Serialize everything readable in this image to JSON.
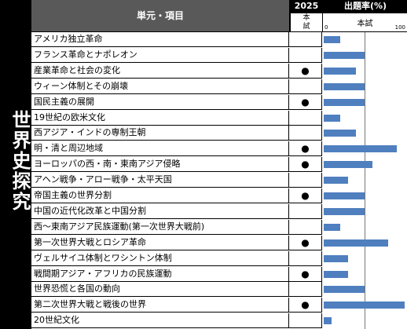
{
  "side_label": "世界史探究",
  "header": {
    "topic": "単元・項目",
    "year": "2025",
    "rate": "出題率(%)",
    "exam_sub": "本\n試",
    "rate_sub": "本試",
    "tick_min": "0",
    "tick_max": "100"
  },
  "chart_data": {
    "type": "bar",
    "orientation": "horizontal",
    "xlim": [
      0,
      100
    ],
    "categories": [
      "アメリカ独立革命",
      "フランス革命とナポレオン",
      "産業革命と社会の変化",
      "ウィーン体制とその崩壊",
      "国民主義の展開",
      "19世紀の欧米文化",
      "西アジア・インドの専制王朝",
      "明・清と周辺地域",
      "ヨーロッパの西・南・東南アジア侵略",
      "アヘン戦争・アロー戦争・太平天国",
      "帝国主義の世界分割",
      "中国の近代化改革と中国分割",
      "西～東南アジア民族運動(第一次世界大戦前)",
      "第一次世界大戦とロシア革命",
      "ヴェルサイユ体制とワシントン体制",
      "戦間期アジア・アフリカの民族運動",
      "世界恐慌と各国の動向",
      "第二次世界大戦と戦後の世界",
      "20世紀文化"
    ],
    "values": [
      20,
      50,
      40,
      50,
      50,
      20,
      40,
      90,
      60,
      30,
      50,
      50,
      20,
      80,
      30,
      30,
      50,
      100,
      10
    ],
    "marks": [
      false,
      false,
      true,
      false,
      true,
      false,
      false,
      true,
      true,
      false,
      true,
      false,
      false,
      true,
      false,
      true,
      false,
      true,
      false
    ],
    "mark_symbol": "●",
    "gridlines": [
      50
    ],
    "colors": {
      "bar": "#4f7fbf"
    }
  }
}
